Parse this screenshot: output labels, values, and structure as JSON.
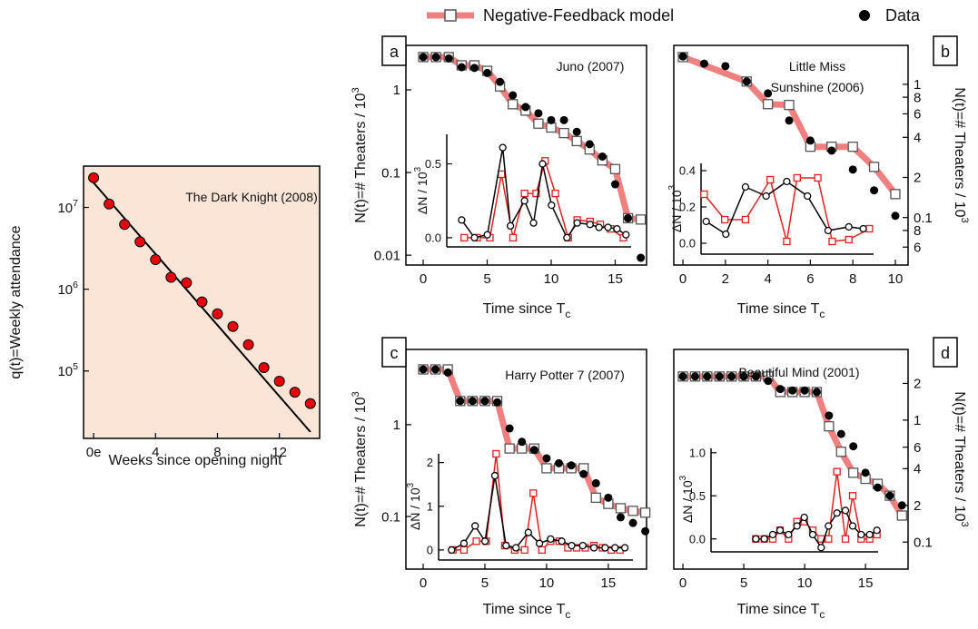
{
  "chart_data": [
    {
      "type": "line",
      "title": [
        "The Dark Knight (2008)"
      ],
      "x_label": "Weeks since opening night",
      "y_label": "q(t)=Weekly attendance",
      "background": "#fbe5d6",
      "log_y": true,
      "xlim": [
        -0.65,
        14.6
      ],
      "ylim": [
        15000,
        32000000
      ],
      "xticks": [
        {
          "value": 0,
          "label": "0e"
        },
        4,
        8,
        12
      ],
      "yticks": [
        {
          "value": 100000,
          "label": "10",
          "sup": "5"
        },
        {
          "value": 1000000,
          "label": "10",
          "sup": "6"
        },
        {
          "value": 10000000,
          "label": "10",
          "sup": "7"
        }
      ],
      "series": [
        {
          "color": "#000000",
          "marker": "none",
          "line_width": 2,
          "x": [
            0,
            14
          ],
          "values": [
            20000000,
            18000
          ]
        },
        {
          "color": "#e8000b",
          "marker": "dot",
          "line": false,
          "x": [
            0,
            1,
            2,
            3,
            4,
            5,
            6,
            7,
            8,
            9,
            10,
            11,
            12,
            13,
            14
          ],
          "values": [
            23000000,
            11000000,
            6200000,
            3800000,
            2300000,
            1400000,
            1200000,
            700000,
            500000,
            350000,
            210000,
            110000,
            75000,
            55000,
            40000
          ]
        }
      ]
    },
    {
      "type": "line",
      "panel": "a",
      "title": [
        "Juno (2007)"
      ],
      "x_label": "Time since T",
      "x_label_sub": "c",
      "y_label": "N(t)=# Theaters / 10",
      "y_label_sup": "3",
      "log_y": true,
      "xlim": [
        -1.35,
        17.45
      ],
      "ylim": [
        0.0076,
        3.45
      ],
      "xticks": [
        0,
        5,
        10,
        15
      ],
      "yticks": [
        0.01,
        0.1,
        1
      ],
      "series": [
        {
          "name": "Negative-Feedback model",
          "color": "#f08080",
          "line_width": 7,
          "marker": "square",
          "marker_color": "#555555",
          "x": [
            0,
            1,
            2,
            3,
            4,
            5,
            6,
            7,
            8,
            9,
            10,
            11,
            12,
            13,
            14,
            15,
            16,
            17
          ],
          "values": [
            2.49,
            2.49,
            2.49,
            1.98,
            1.98,
            1.7,
            1.1,
            0.67,
            0.56,
            0.39,
            0.35,
            0.3,
            0.24,
            0.19,
            0.14,
            0.11,
            0.028,
            0.027
          ]
        },
        {
          "name": "Data",
          "color": "#000000",
          "line": false,
          "marker": "dot",
          "x": [
            0,
            1,
            2,
            3,
            4,
            5,
            6,
            7,
            8,
            9,
            10,
            11,
            12,
            13,
            14,
            15,
            16,
            17
          ],
          "values": [
            2.49,
            2.49,
            2.4,
            1.88,
            1.84,
            1.6,
            1.25,
            0.86,
            0.62,
            0.52,
            0.43,
            0.43,
            0.31,
            0.22,
            0.156,
            0.072,
            0.028,
            0.0093
          ]
        }
      ]
    },
    {
      "type": "line",
      "inset": true,
      "y_label": "ΔN / 10",
      "y_label_sup": "3",
      "xlim": [
        1.84,
        16.2
      ],
      "ylim": [
        -0.062,
        0.7
      ],
      "yticks": [
        {
          "value": 0,
          "label": "0.0"
        },
        0.5
      ],
      "series": [
        {
          "color": "#e02020",
          "marker": "open-square",
          "x": [
            3.2,
            4.2,
            5.2,
            6.1,
            7,
            7.9,
            8.8,
            9.5,
            10.3,
            11.3,
            12,
            13,
            13.8,
            14.6,
            15.6
          ],
          "values": [
            0,
            0,
            0,
            0.43,
            0,
            0.3,
            0.3,
            0.52,
            0.3,
            0,
            0.12,
            0.11,
            0.09,
            0.06,
            0
          ]
        },
        {
          "color": "#000000",
          "marker": "open-circle",
          "x": [
            3,
            4,
            5,
            6.2,
            6.8,
            7.9,
            8.6,
            9.3,
            10,
            11.2,
            12,
            13,
            13.7,
            14.4,
            15.1,
            15.8
          ],
          "values": [
            0.12,
            0,
            0.02,
            0.61,
            0.08,
            0.25,
            0.1,
            0.5,
            0.22,
            0,
            0.1,
            0.09,
            0.07,
            0.07,
            0.06,
            0.02
          ]
        }
      ]
    },
    {
      "type": "line",
      "panel": "b",
      "title": [
        "Little Miss",
        "Sunshine (2006)"
      ],
      "x_label": "Time since T",
      "x_label_sub": "c",
      "y_label": "N(t)=# Theaters / 10",
      "y_label_sup": "3",
      "y_axis_side": "right",
      "log_y": true,
      "xlim": [
        -0.43,
        10.6
      ],
      "ylim": [
        0.044,
        1.96
      ],
      "xticks": [
        0,
        2,
        4,
        6,
        8,
        10
      ],
      "yticks": [
        {
          "value": 0.06,
          "label": "6"
        },
        {
          "value": 0.08,
          "label": "8"
        },
        0.1,
        {
          "value": 0.2,
          "label": "2"
        },
        {
          "value": 0.4,
          "label": "4"
        },
        {
          "value": 0.6,
          "label": "6"
        },
        {
          "value": 0.8,
          "label": "8"
        },
        1
      ],
      "series": [
        {
          "name": "Negative-Feedback model",
          "color": "#f08080",
          "line_width": 7,
          "marker": "square",
          "marker_color": "#555555",
          "x": [
            0,
            3,
            4,
            5,
            6,
            7,
            8,
            9,
            10
          ],
          "values": [
            1.6,
            1.05,
            0.71,
            0.7,
            0.34,
            0.34,
            0.34,
            0.24,
            0.15
          ]
        },
        {
          "name": "Data",
          "color": "#000000",
          "line": false,
          "marker": "dot",
          "x": [
            0,
            1,
            2,
            3,
            4,
            5,
            6,
            7,
            8,
            9,
            10
          ],
          "values": [
            1.62,
            1.43,
            1.37,
            1.05,
            0.855,
            0.535,
            0.378,
            0.318,
            0.229,
            0.16,
            0.103
          ]
        }
      ]
    },
    {
      "type": "line",
      "inset": true,
      "y_label": "ΔN / 10",
      "y_label_sup": "3",
      "xlim": [
        0.85,
        9.2
      ],
      "ylim": [
        -0.06,
        0.44
      ],
      "yticks": [
        {
          "value": 0,
          "label": "0.0"
        },
        0.2,
        0.4
      ],
      "series": [
        {
          "color": "#e02020",
          "marker": "open-square",
          "x": [
            1,
            2,
            3,
            4.2,
            5,
            5.5,
            6.5,
            7.2,
            8,
            9
          ],
          "values": [
            0.27,
            0.13,
            0.13,
            0.35,
            0.01,
            0.36,
            0.36,
            0.01,
            0.02,
            0.08
          ]
        },
        {
          "color": "#000000",
          "marker": "open-circle",
          "x": [
            1.1,
            2.05,
            3,
            4,
            5,
            6,
            7,
            8,
            8.7
          ],
          "values": [
            0.12,
            0.05,
            0.31,
            0.26,
            0.34,
            0.26,
            0.07,
            0.09,
            0.08
          ]
        }
      ]
    },
    {
      "type": "line",
      "panel": "c",
      "title": [
        "Harry Potter 7 (2007)"
      ],
      "x_label": "Time since T",
      "x_label_sub": "c",
      "y_label": "N(t)=# Theaters / 10",
      "y_label_sup": "3",
      "log_y": true,
      "xlim": [
        -1.4,
        18.1
      ],
      "ylim": [
        0.0267,
        6.6
      ],
      "xticks": [
        0,
        5,
        10,
        15
      ],
      "yticks": [
        0.1,
        1
      ],
      "series": [
        {
          "name": "Negative-Feedback model",
          "color": "#f08080",
          "line_width": 7,
          "marker": "square",
          "marker_color": "#555555",
          "x": [
            0,
            1,
            2,
            3,
            4,
            5,
            6,
            7,
            8,
            9,
            10,
            11,
            12,
            13,
            14,
            15,
            16,
            17,
            18
          ],
          "values": [
            4.0,
            4.0,
            4.0,
            1.81,
            1.81,
            1.81,
            1.81,
            0.55,
            0.55,
            0.55,
            0.335,
            0.335,
            0.335,
            0.335,
            0.16,
            0.137,
            0.123,
            0.115,
            0.11
          ]
        },
        {
          "name": "Data",
          "color": "#000000",
          "line": false,
          "marker": "dot",
          "x": [
            0,
            1,
            2,
            3,
            4,
            5,
            6,
            7,
            8,
            9,
            10,
            11,
            12,
            13,
            14,
            15,
            16,
            17,
            18
          ],
          "values": [
            4.0,
            4.0,
            3.7,
            1.81,
            1.81,
            1.81,
            1.75,
            0.91,
            0.65,
            0.53,
            0.43,
            0.38,
            0.36,
            0.29,
            0.23,
            0.16,
            0.098,
            0.085,
            0.069
          ]
        }
      ]
    },
    {
      "type": "line",
      "inset": true,
      "y_label": "ΔN / 10",
      "y_label_sup": "3",
      "xlim": [
        1.25,
        16.95
      ],
      "ylim": [
        -0.23,
        2.2
      ],
      "yticks": [
        0,
        1,
        2
      ],
      "series": [
        {
          "color": "#e02020",
          "marker": "open-square",
          "x": [
            2.4,
            3.3,
            4.3,
            5.1,
            5.9,
            6.6,
            7.4,
            8.2,
            8.9,
            9.6,
            10.3,
            11,
            11.7,
            12.4,
            13.1,
            13.8,
            14.5,
            15.2,
            15.9
          ],
          "values": [
            0,
            0,
            0.2,
            0.2,
            2.2,
            0.1,
            0,
            0,
            1.3,
            0,
            0.2,
            0.2,
            0.05,
            0.05,
            0.05,
            0.1,
            0.05,
            0,
            0
          ]
        },
        {
          "color": "#000000",
          "marker": "open-circle",
          "x": [
            2.3,
            3.3,
            4.2,
            5,
            5.8,
            6.7,
            7.5,
            8.5,
            9.4,
            10.3,
            11.2,
            12,
            12.9,
            13.8,
            14.7,
            15.5,
            16.3
          ],
          "values": [
            0,
            0.15,
            0.55,
            0.2,
            1.7,
            0.1,
            0.05,
            0.4,
            0.15,
            0.25,
            0.2,
            0.1,
            0.1,
            0.05,
            0.05,
            0.05,
            0.05
          ]
        }
      ]
    },
    {
      "type": "line",
      "panel": "d",
      "title": [
        "Beautiful Mind (2001)"
      ],
      "x_label": "Time since T",
      "x_label_sub": "c",
      "y_label": "N(t)=# Theaters / 10",
      "y_label_sup": "3",
      "y_axis_side": "right",
      "log_y": true,
      "xlim": [
        -0.75,
        18.5
      ],
      "ylim": [
        0.06,
        3.8
      ],
      "xticks": [
        0,
        5,
        10,
        15
      ],
      "yticks": [
        0.1,
        {
          "value": 0.2,
          "label": "2"
        },
        {
          "value": 0.4,
          "label": "4"
        },
        {
          "value": 0.6,
          "label": "6"
        },
        1,
        {
          "value": 2,
          "label": "2"
        }
      ],
      "series": [
        {
          "name": "Negative-Feedback model",
          "color": "#f08080",
          "line_width": 7,
          "marker": "square",
          "marker_color": "#555555",
          "x": [
            0,
            1,
            2,
            3,
            4,
            5,
            6,
            7,
            8,
            9,
            10,
            11,
            12,
            13,
            14,
            15,
            16,
            17,
            18
          ],
          "values": [
            2.28,
            2.28,
            2.28,
            2.28,
            2.28,
            2.28,
            2.28,
            2.28,
            1.7,
            1.7,
            1.7,
            1.7,
            0.89,
            0.55,
            0.37,
            0.33,
            0.3,
            0.24,
            0.165
          ]
        },
        {
          "name": "Data",
          "color": "#000000",
          "line": false,
          "marker": "dot",
          "x": [
            0,
            1,
            2,
            3,
            4,
            5,
            6,
            7,
            8,
            9,
            10,
            11,
            12,
            13,
            14,
            15,
            16,
            17,
            18
          ],
          "values": [
            2.28,
            2.28,
            2.28,
            2.28,
            2.28,
            2.28,
            2.28,
            2.1,
            1.8,
            1.75,
            1.75,
            1.7,
            1.09,
            0.77,
            0.61,
            0.37,
            0.28,
            0.24,
            0.2
          ]
        }
      ]
    },
    {
      "type": "line",
      "inset": true,
      "y_label": "ΔN / 10",
      "y_label_sup": "3",
      "xlim": [
        2.3,
        16.1
      ],
      "ylim": [
        -0.15,
        1.05
      ],
      "yticks": [
        {
          "value": 0,
          "label": "0.0"
        },
        0.5,
        {
          "value": 1,
          "label": "1.0"
        }
      ],
      "series": [
        {
          "color": "#e02020",
          "marker": "open-square",
          "x": [
            6,
            6.7,
            7.4,
            8,
            8.7,
            9.4,
            10,
            10.7,
            11.4,
            12,
            12.7,
            13.4,
            14,
            14.7,
            15.4,
            16
          ],
          "values": [
            0,
            0,
            0,
            0.1,
            0,
            0.2,
            0.2,
            0.1,
            0,
            0,
            0.78,
            0,
            0.5,
            0,
            0,
            0.05
          ]
        },
        {
          "color": "#000000",
          "marker": "open-circle",
          "x": [
            6,
            6.7,
            7.4,
            8,
            8.7,
            9.4,
            10,
            10.7,
            11.4,
            12,
            12.7,
            13.4,
            14,
            14.7,
            15.4,
            16
          ],
          "values": [
            0,
            0,
            0.05,
            0.1,
            0.05,
            0.15,
            0.25,
            0.05,
            -0.1,
            0.15,
            0.3,
            0.33,
            0.15,
            0.05,
            0.05,
            0.1
          ]
        }
      ]
    }
  ]
}
